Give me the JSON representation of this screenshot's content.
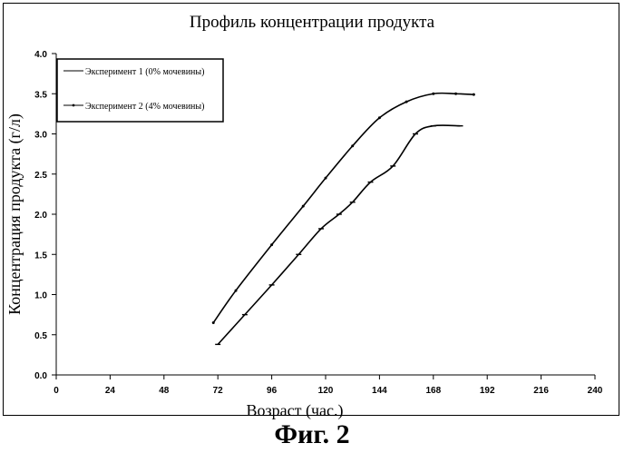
{
  "chart_data": {
    "type": "line",
    "title": "Профиль концентрации продукта",
    "xlabel": "Возраст (час.)",
    "ylabel": "Концентрация продукта (г/л)",
    "xlim": [
      0,
      240
    ],
    "ylim": [
      0,
      4.0
    ],
    "xticks": [
      0,
      24,
      48,
      72,
      96,
      120,
      144,
      168,
      192,
      216,
      240
    ],
    "yticks": [
      "0.0",
      "0.5",
      "1.0",
      "1.5",
      "2.0",
      "2.5",
      "3.0",
      "3.5",
      "4.0"
    ],
    "grid": false,
    "legend_position": "top-left",
    "series": [
      {
        "name": "Эксперимент 1 (0% мочевины)",
        "color": "#000000",
        "marker": "dash",
        "x": [
          72,
          84,
          96,
          108,
          118,
          126,
          132,
          140,
          150,
          160,
          168,
          180
        ],
        "y": [
          0.38,
          0.75,
          1.12,
          1.5,
          1.82,
          2.0,
          2.15,
          2.4,
          2.6,
          3.0,
          3.1,
          3.1
        ]
      },
      {
        "name": "Эксперимент 2 (4% мочевины)",
        "color": "#000000",
        "marker": "point",
        "x": [
          70,
          80,
          96,
          110,
          120,
          132,
          144,
          156,
          168,
          178,
          186
        ],
        "y": [
          0.65,
          1.05,
          1.62,
          2.1,
          2.45,
          2.85,
          3.2,
          3.4,
          3.5,
          3.5,
          3.49
        ]
      }
    ]
  },
  "caption": "Фиг. 2"
}
